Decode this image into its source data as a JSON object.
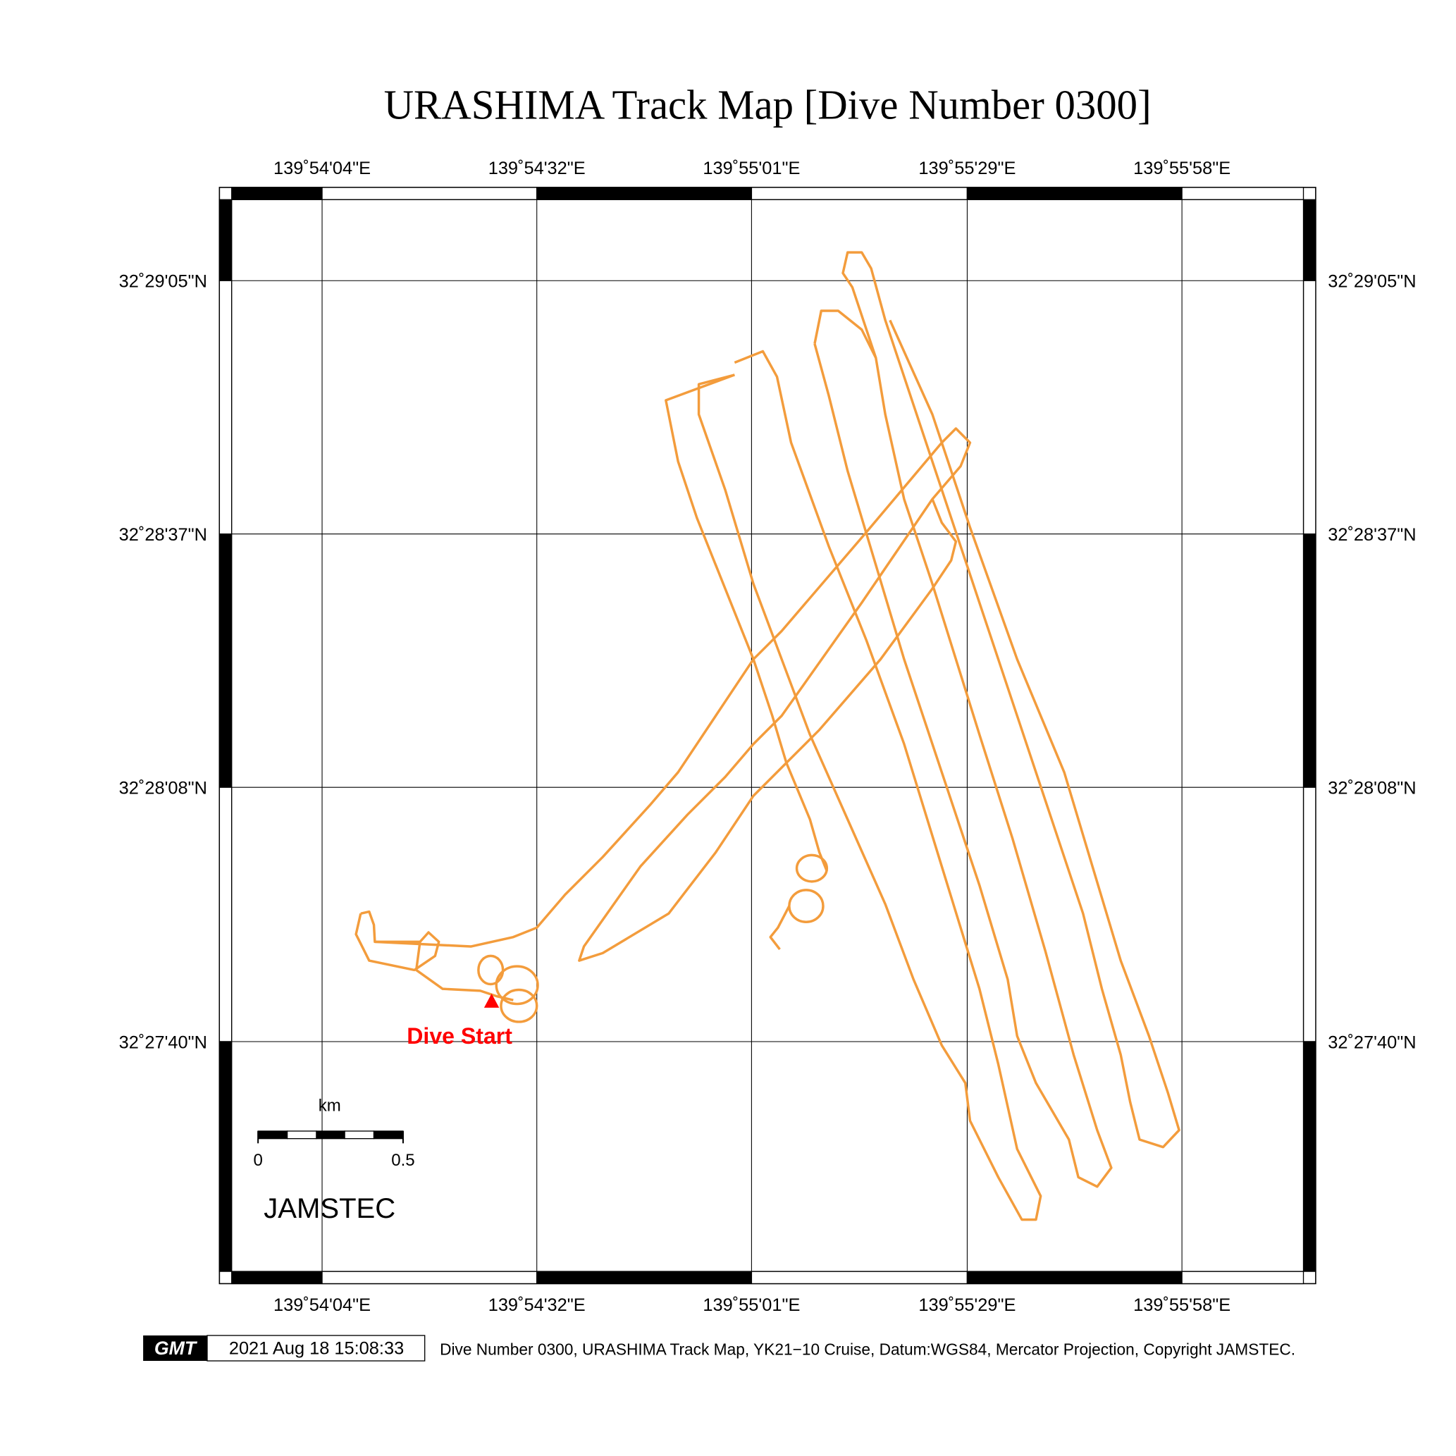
{
  "title": "URASHIMA Track Map [Dive Number 0300]",
  "map": {
    "x_labels": [
      "139˚54'04\"E",
      "139˚54'32\"E",
      "139˚55'01\"E",
      "139˚55'29\"E",
      "139˚55'58\"E"
    ],
    "y_labels": [
      "32˚29'05\"N",
      "32˚28'37\"N",
      "32˚28'08\"N",
      "32˚27'40\"N"
    ],
    "annotation": "Dive Start",
    "scale_bar": {
      "unit": "km",
      "labels": [
        0,
        0.5
      ]
    },
    "logo": "JAMSTEC"
  },
  "footer": {
    "badge": "GMT",
    "timestamp": "2021 Aug 18 15:08:33",
    "caption": "Dive Number 0300, URASHIMA Track Map, YK21−10 Cruise, Datum:WGS84, Mercator Projection, Copyright JAMSTEC."
  }
}
